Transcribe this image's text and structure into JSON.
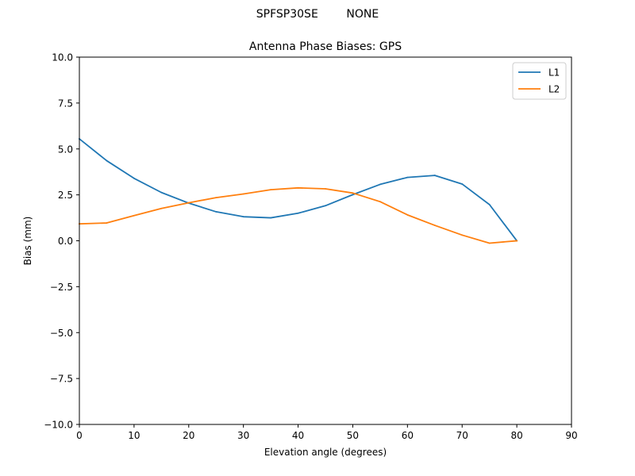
{
  "figure": {
    "suptitle": "SPFSP30SE        NONE"
  },
  "chart_data": {
    "type": "line",
    "title": "Antenna Phase Biases: GPS",
    "xlabel": "Elevation angle (degrees)",
    "ylabel": "Bias (mm)",
    "xlim": [
      0,
      90
    ],
    "ylim": [
      -10,
      10
    ],
    "xticks": [
      0,
      10,
      20,
      30,
      40,
      50,
      60,
      70,
      80,
      90
    ],
    "xtick_labels": [
      "0",
      "10",
      "20",
      "30",
      "40",
      "50",
      "60",
      "70",
      "80",
      "90"
    ],
    "yticks": [
      -10,
      -7.5,
      -5,
      -2.5,
      0,
      2.5,
      5,
      7.5,
      10
    ],
    "ytick_labels": [
      "−10.0",
      "−7.5",
      "−5.0",
      "−2.5",
      "0.0",
      "2.5",
      "5.0",
      "7.5",
      "10.0"
    ],
    "grid": false,
    "legend_position": "top-right",
    "x": [
      0,
      5,
      10,
      15,
      20,
      25,
      30,
      35,
      40,
      45,
      50,
      55,
      60,
      65,
      70,
      75,
      80
    ],
    "series": [
      {
        "name": "L1",
        "color": "#1f77b4",
        "values": [
          5.55,
          4.36,
          3.4,
          2.63,
          2.05,
          1.58,
          1.31,
          1.25,
          1.5,
          1.91,
          2.51,
          3.07,
          3.45,
          3.56,
          3.09,
          1.97,
          0.0
        ]
      },
      {
        "name": "L2",
        "color": "#ff7f0e",
        "values": [
          0.92,
          0.97,
          1.37,
          1.76,
          2.07,
          2.35,
          2.55,
          2.78,
          2.88,
          2.83,
          2.6,
          2.13,
          1.41,
          0.84,
          0.31,
          -0.13,
          0.0
        ]
      }
    ]
  }
}
